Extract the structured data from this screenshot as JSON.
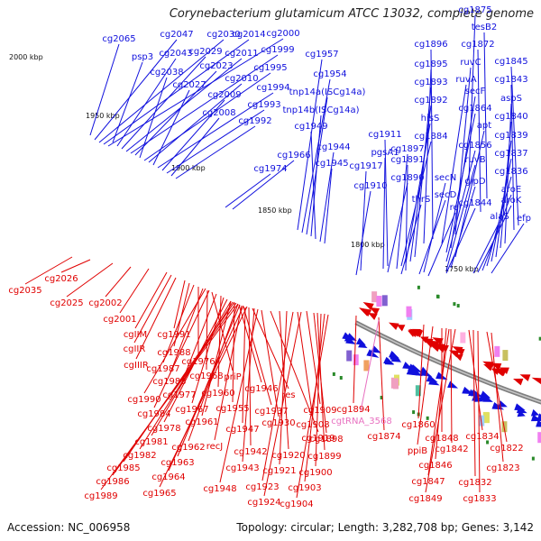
{
  "title": "Corynebacterium glutamicum ATCC 13032, complete genome",
  "footer": {
    "accession": "Accession: NC_006958",
    "summary": "Topology: circular; Length: 3,282,708 bp; Genes: 3,142"
  },
  "colors": {
    "forward": "#1010dd",
    "reverse": "#e00000",
    "rna": "#e870c0",
    "backbone": "#808080",
    "ticks": "#2a8a2a"
  },
  "ticks": [
    "2000 kbp",
    "1950 kbp",
    "1900 kbp",
    "1850 kbp",
    "1800 kbp",
    "1750 kbp"
  ],
  "forward_labels": [
    "cg1875",
    "tesB2",
    "cg1872",
    "cg1845",
    "ruvC",
    "cg1843",
    "cg1896",
    "ruvA",
    "aspS",
    "cg1895",
    "secF",
    "cg1840",
    "cg1864",
    "apt",
    "cg1839",
    "cg1893",
    "cg1856",
    "cg1837",
    "cg1892",
    "hisS",
    "cg1836",
    "cg1884",
    "cg1911",
    "glpD",
    "aroE",
    "pgsA1",
    "cg1897",
    "cg1891",
    "ruvB",
    "aroK",
    "cg1890",
    "secN",
    "cg1844",
    "alaS",
    "efp",
    "cg1917",
    "thrS",
    "secD",
    "rel",
    "cg1910",
    "cg2065",
    "cg2047",
    "cg2030",
    "cg2014",
    "cg2000",
    "psp3",
    "cg2043",
    "cg2029",
    "cg2011",
    "cg1999",
    "cg2023",
    "cg2038",
    "cg1995",
    "cg2010",
    "cg2027",
    "cg1994",
    "cg2009",
    "cg1993",
    "cg2008",
    "cg1992",
    "cg1957",
    "cg1954",
    "tnp14a(ISCg14a)",
    "tnp14b(ISCg14a)",
    "cg1949",
    "cg1944",
    "cg1966",
    "cg1945",
    "cg1974"
  ],
  "reverse_labels": [
    "cg2035",
    "cg2026",
    "cg2025",
    "cg2002",
    "cg2001",
    "cgIIM",
    "cgIIR",
    "cgIIIR",
    "cg1991",
    "cg1988",
    "cg1987",
    "cg1976",
    "cg1983",
    "cg1968",
    "priP",
    "cg1977",
    "cg1960",
    "cg1990",
    "cg1984",
    "cg1967",
    "cg1978",
    "cg1961",
    "cg1955",
    "cg1946",
    "cg1937",
    "res",
    "cg1909",
    "cg1894",
    "cg1930",
    "cg1908",
    "cg1981",
    "cg1962",
    "recJ",
    "cg1947",
    "cg1919",
    "cg1898",
    "cg1982",
    "cg1963",
    "cg1942",
    "cg1920",
    "cg1899",
    "cg1985",
    "cg1964",
    "cg1943",
    "cg1921",
    "cg1900",
    "cg1986",
    "cg1948",
    "cg1923",
    "cg1903",
    "cg1989",
    "cg1965",
    "cg1924",
    "cg1904",
    "cg1874",
    "cg1860",
    "ppiB",
    "cg1848",
    "cg1842",
    "cg1834",
    "cg1822",
    "cg1846",
    "cg1823",
    "cg1847",
    "cg1832",
    "cg1849",
    "cg1833"
  ],
  "rna_labels": [
    "cgtRNA_3568"
  ]
}
